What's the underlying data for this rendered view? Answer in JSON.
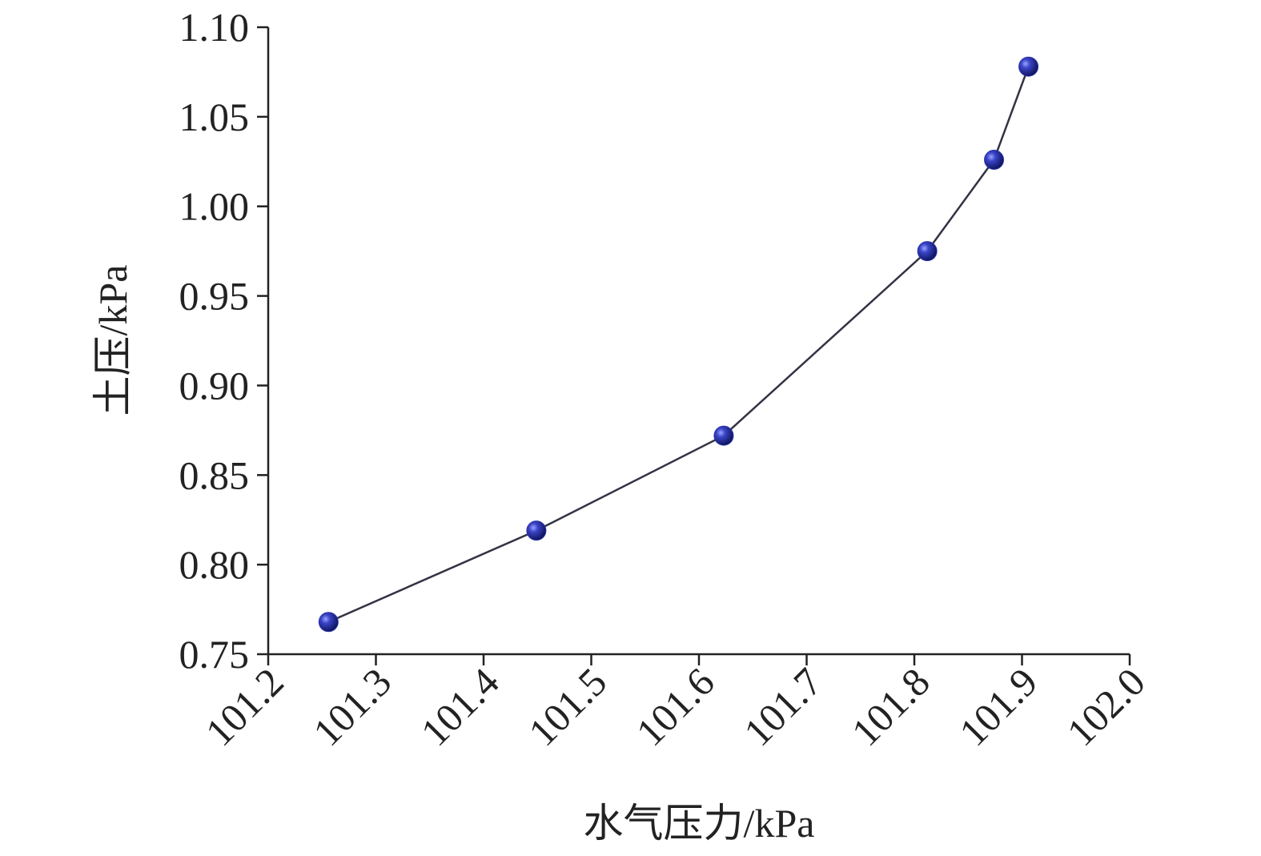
{
  "chart_data": {
    "type": "line",
    "x_label": "水气压力/kPa",
    "y_label": "土压/kPa",
    "x": [
      101.256,
      101.449,
      101.623,
      101.812,
      101.874,
      101.906
    ],
    "series": [
      {
        "values": [
          0.768,
          0.819,
          0.872,
          0.975,
          1.026,
          1.078
        ],
        "color": "#2a34a8",
        "line_color": "#333344"
      }
    ],
    "xlim": [
      101.2,
      102.0
    ],
    "xticks": [
      101.2,
      101.3,
      101.4,
      101.5,
      101.6,
      101.7,
      101.8,
      101.9,
      {
        "value": 102.0,
        "label": "102.0"
      }
    ],
    "ylim": [
      0.75,
      1.1
    ],
    "yticks": [
      0.75,
      {
        "value": 0.8,
        "label": "0.80"
      },
      0.85,
      {
        "value": 0.9,
        "label": "0.90"
      },
      0.95,
      {
        "value": 1.0,
        "label": "1.00"
      },
      1.05,
      {
        "value": 1.1,
        "label": "1.10"
      }
    ]
  }
}
